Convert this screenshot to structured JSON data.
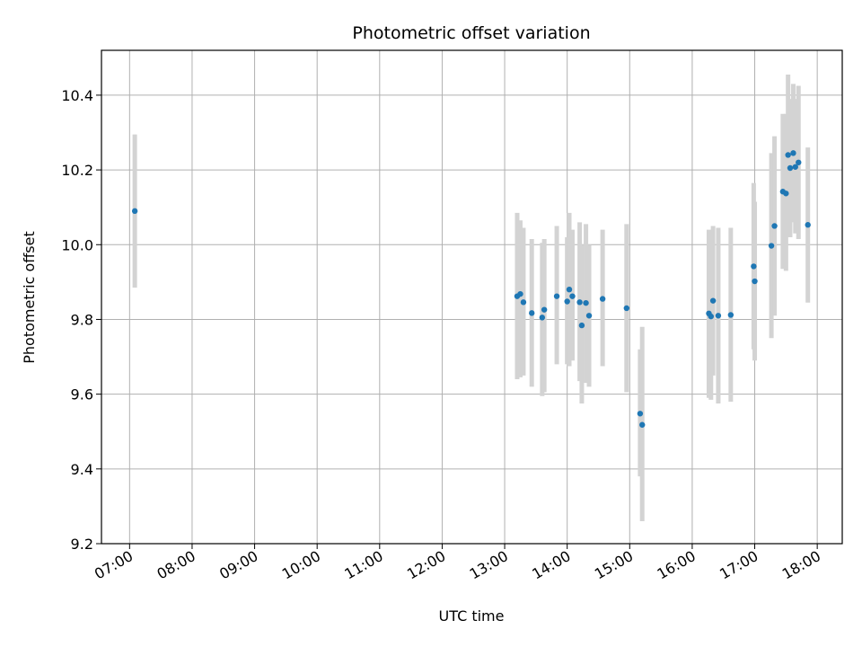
{
  "chart_data": {
    "type": "scatter",
    "title": "Photometric offset variation",
    "xlabel": "UTC time",
    "ylabel": "Photometric offset",
    "x_unit": "UTC time of day",
    "xlim": [
      "06:33",
      "18:24"
    ],
    "ylim": [
      9.2,
      10.52
    ],
    "x_ticks": [
      "07:00",
      "08:00",
      "09:00",
      "10:00",
      "11:00",
      "12:00",
      "13:00",
      "14:00",
      "15:00",
      "16:00",
      "17:00",
      "18:00"
    ],
    "y_ticks": [
      9.2,
      9.4,
      9.6,
      9.8,
      10.0,
      10.2,
      10.4
    ],
    "y_tick_labels": [
      "9.2",
      "9.4",
      "9.6",
      "9.8",
      "10.0",
      "10.2",
      "10.4"
    ],
    "grid": true,
    "point_color": "#1f77b4",
    "errorbar_color": "#d3d3d3",
    "series": [
      {
        "points": [
          {
            "x": "07:05",
            "y": 10.09,
            "lo": 9.885,
            "hi": 10.295
          },
          {
            "x": "13:12",
            "y": 9.862,
            "lo": 9.64,
            "hi": 10.085
          },
          {
            "x": "13:15",
            "y": 9.868,
            "lo": 9.645,
            "hi": 10.065
          },
          {
            "x": "13:18",
            "y": 9.846,
            "lo": 9.65,
            "hi": 10.045
          },
          {
            "x": "13:26",
            "y": 9.817,
            "lo": 9.62,
            "hi": 10.015
          },
          {
            "x": "13:36",
            "y": 9.805,
            "lo": 9.595,
            "hi": 10.005
          },
          {
            "x": "13:38",
            "y": 9.826,
            "lo": 9.605,
            "hi": 10.015
          },
          {
            "x": "13:50",
            "y": 9.862,
            "lo": 9.68,
            "hi": 10.05
          },
          {
            "x": "14:00",
            "y": 9.848,
            "lo": 9.68,
            "hi": 10.02
          },
          {
            "x": "14:02",
            "y": 9.88,
            "lo": 9.675,
            "hi": 10.085
          },
          {
            "x": "14:05",
            "y": 9.862,
            "lo": 9.69,
            "hi": 10.04
          },
          {
            "x": "14:12",
            "y": 9.846,
            "lo": 9.635,
            "hi": 10.06
          },
          {
            "x": "14:14",
            "y": 9.784,
            "lo": 9.575,
            "hi": 10.0
          },
          {
            "x": "14:18",
            "y": 9.844,
            "lo": 9.63,
            "hi": 10.055
          },
          {
            "x": "14:21",
            "y": 9.81,
            "lo": 9.62,
            "hi": 10.0
          },
          {
            "x": "14:34",
            "y": 9.855,
            "lo": 9.675,
            "hi": 10.04
          },
          {
            "x": "14:57",
            "y": 9.83,
            "lo": 9.605,
            "hi": 10.055
          },
          {
            "x": "15:10",
            "y": 9.548,
            "lo": 9.38,
            "hi": 9.72
          },
          {
            "x": "15:12",
            "y": 9.518,
            "lo": 9.26,
            "hi": 9.78
          },
          {
            "x": "16:16",
            "y": 9.816,
            "lo": 9.59,
            "hi": 10.04
          },
          {
            "x": "16:18",
            "y": 9.808,
            "lo": 9.585,
            "hi": 10.03
          },
          {
            "x": "16:20",
            "y": 9.85,
            "lo": 9.65,
            "hi": 10.05
          },
          {
            "x": "16:25",
            "y": 9.81,
            "lo": 9.575,
            "hi": 10.045
          },
          {
            "x": "16:37",
            "y": 9.812,
            "lo": 9.58,
            "hi": 10.045
          },
          {
            "x": "16:59",
            "y": 9.942,
            "lo": 9.72,
            "hi": 10.165
          },
          {
            "x": "17:00",
            "y": 9.902,
            "lo": 9.69,
            "hi": 10.115
          },
          {
            "x": "17:16",
            "y": 9.997,
            "lo": 9.75,
            "hi": 10.245
          },
          {
            "x": "17:19",
            "y": 10.05,
            "lo": 9.81,
            "hi": 10.29
          },
          {
            "x": "17:27",
            "y": 10.142,
            "lo": 9.935,
            "hi": 10.35
          },
          {
            "x": "17:30",
            "y": 10.137,
            "lo": 9.93,
            "hi": 10.35
          },
          {
            "x": "17:32",
            "y": 10.24,
            "lo": 10.025,
            "hi": 10.455
          },
          {
            "x": "17:34",
            "y": 10.205,
            "lo": 10.02,
            "hi": 10.39
          },
          {
            "x": "17:37",
            "y": 10.245,
            "lo": 10.06,
            "hi": 10.43
          },
          {
            "x": "17:39",
            "y": 10.208,
            "lo": 10.03,
            "hi": 10.39
          },
          {
            "x": "17:42",
            "y": 10.22,
            "lo": 10.015,
            "hi": 10.425
          },
          {
            "x": "17:51",
            "y": 10.053,
            "lo": 9.845,
            "hi": 10.26
          }
        ]
      }
    ]
  }
}
